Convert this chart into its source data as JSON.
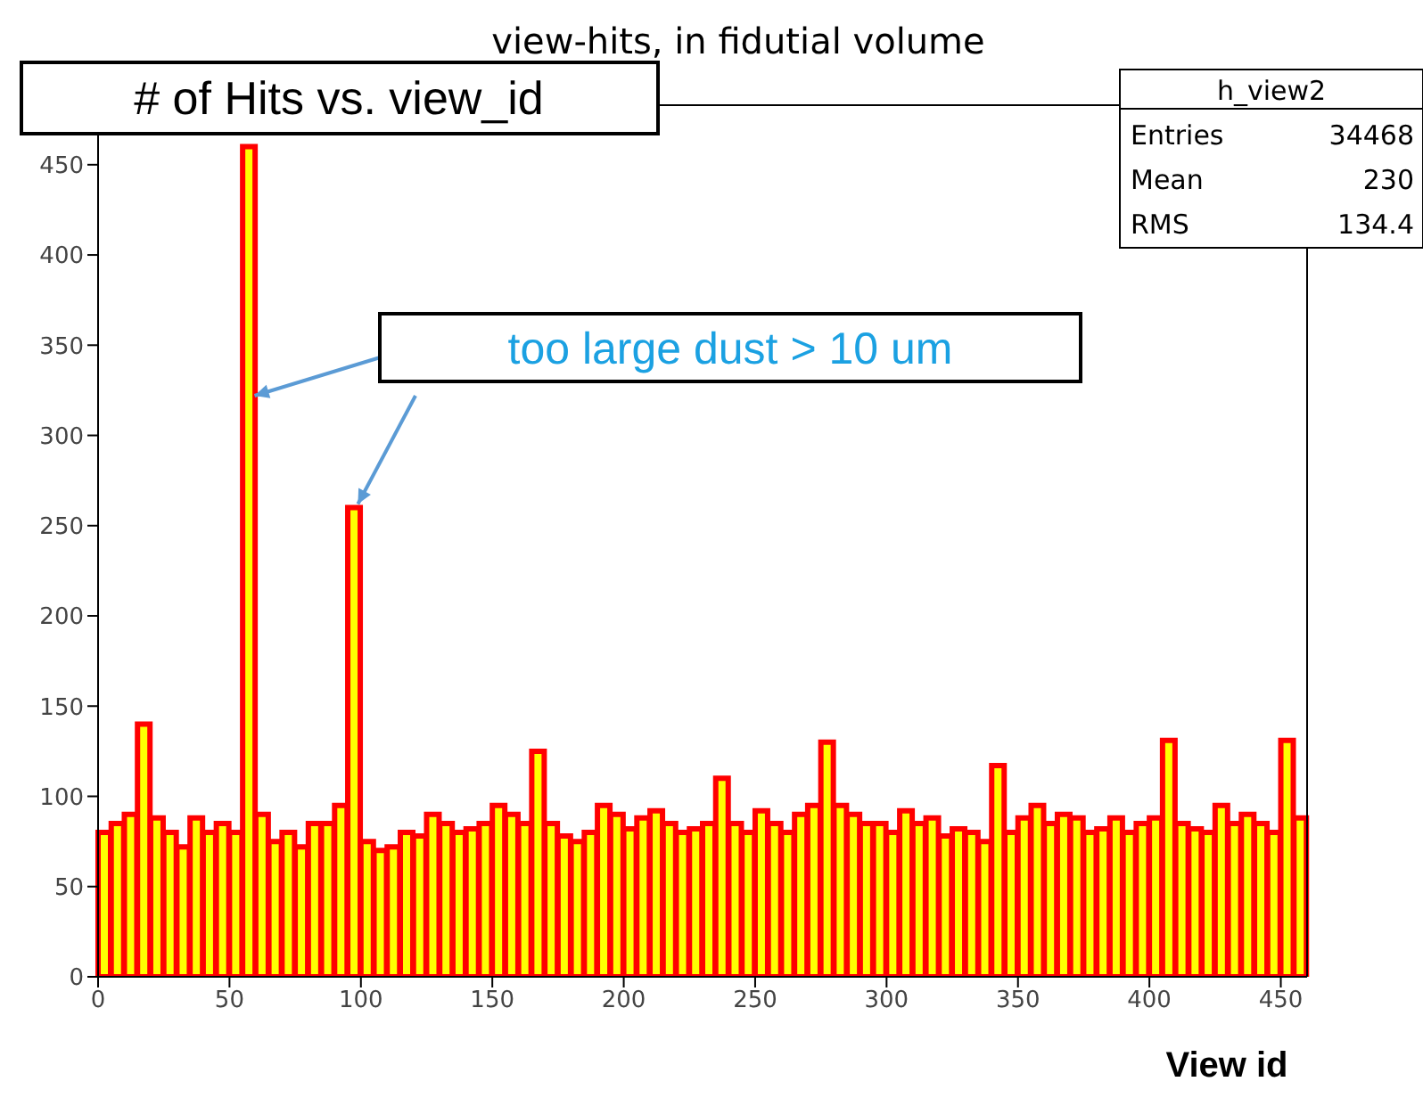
{
  "chart_data": {
    "type": "histogram",
    "title": "view-hits, in fidutial volume",
    "xlabel": "View id",
    "bins": [
      0,
      5,
      10,
      15,
      20,
      25,
      30,
      35,
      40,
      45,
      50,
      55,
      60,
      65,
      70,
      75,
      80,
      85,
      90,
      95,
      100,
      105,
      110,
      115,
      120,
      125,
      130,
      135,
      140,
      145,
      150,
      155,
      160,
      165,
      170,
      175,
      180,
      185,
      190,
      195,
      200,
      205,
      210,
      215,
      220,
      225,
      230,
      235,
      240,
      245,
      250,
      255,
      260,
      265,
      270,
      275,
      280,
      285,
      290,
      295,
      300,
      305,
      310,
      315,
      320,
      325,
      330,
      335,
      340,
      345,
      350,
      355,
      360,
      365,
      370,
      375,
      380,
      385,
      390,
      395,
      400,
      405,
      410,
      415,
      420,
      425,
      430,
      435,
      440,
      445,
      450,
      455,
      460
    ],
    "values": [
      80,
      85,
      90,
      140,
      88,
      80,
      72,
      88,
      80,
      85,
      80,
      460,
      90,
      75,
      80,
      72,
      85,
      85,
      95,
      260,
      75,
      70,
      72,
      80,
      78,
      90,
      85,
      80,
      82,
      85,
      95,
      90,
      85,
      125,
      85,
      78,
      75,
      80,
      95,
      90,
      82,
      88,
      92,
      85,
      80,
      82,
      85,
      110,
      85,
      80,
      92,
      85,
      80,
      90,
      95,
      130,
      95,
      90,
      85,
      85,
      80,
      92,
      85,
      88,
      78,
      82,
      80,
      75,
      117,
      80,
      88,
      95,
      85,
      90,
      88,
      80,
      82,
      88,
      80,
      85,
      88,
      131,
      85,
      82,
      80,
      95,
      85,
      90,
      85,
      80,
      131,
      88
    ],
    "color": "#ffff00",
    "xlim": [
      0,
      460
    ],
    "xticks": [
      0,
      50,
      100,
      150,
      200,
      250,
      300,
      350,
      400,
      450
    ],
    "ylim": [
      0,
      483
    ],
    "yticks": [
      0,
      50,
      100,
      150,
      200,
      250,
      300,
      350,
      400,
      450
    ],
    "annotations": [
      "# of Hits vs. view_id",
      "too large dust > 10 um",
      "h_view2",
      "Entries",
      "34468",
      "Mean",
      "230",
      "RMS",
      "134.4"
    ]
  }
}
